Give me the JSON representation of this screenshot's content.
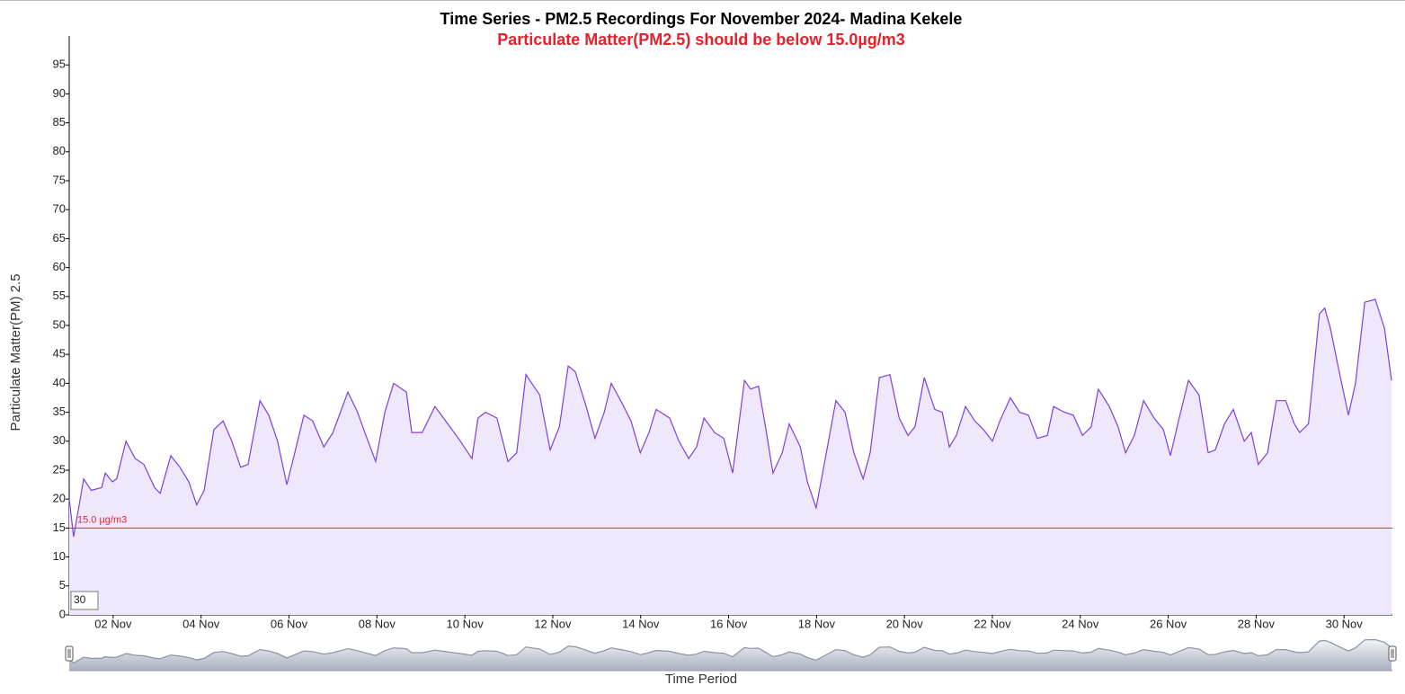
{
  "chart_data": {
    "type": "line",
    "title": "Time Series - PM2.5 Recordings For November 2024- Madina Kekele",
    "subtitle": "Particulate Matter(PM2.5) should be below 15.0µg/m3",
    "y_label": "Particulate Matter(PM) 2.5",
    "x_label": "Time Period",
    "roll_period": 30,
    "color": "#7b3fe4",
    "fill": "#efe8fd",
    "threshold": {
      "value": 15,
      "label": "15.0 µg/m3",
      "color": "#e8202a"
    },
    "xlim": [
      1,
      31.1
    ],
    "ylim": [
      0,
      100
    ],
    "xticks": [
      {
        "value": 2,
        "label": "02 Nov"
      },
      {
        "value": 4,
        "label": "04 Nov"
      },
      {
        "value": 6,
        "label": "06 Nov"
      },
      {
        "value": 8,
        "label": "08 Nov"
      },
      {
        "value": 10,
        "label": "10 Nov"
      },
      {
        "value": 12,
        "label": "12 Nov"
      },
      {
        "value": 14,
        "label": "14 Nov"
      },
      {
        "value": 16,
        "label": "16 Nov"
      },
      {
        "value": 18,
        "label": "18 Nov"
      },
      {
        "value": 20,
        "label": "20 Nov"
      },
      {
        "value": 22,
        "label": "22 Nov"
      },
      {
        "value": 24,
        "label": "24 Nov"
      },
      {
        "value": 26,
        "label": "26 Nov"
      },
      {
        "value": 28,
        "label": "28 Nov"
      },
      {
        "value": 30,
        "label": "30 Nov"
      }
    ],
    "yticks": [
      0,
      5,
      10,
      15,
      20,
      25,
      30,
      35,
      40,
      45,
      50,
      55,
      60,
      65,
      70,
      75,
      80,
      85,
      90,
      95
    ],
    "x": [
      1.0,
      1.1,
      1.25,
      1.33,
      1.5,
      1.74,
      1.82,
      1.98,
      2.08,
      2.29,
      2.5,
      2.7,
      2.94,
      3.07,
      3.31,
      3.52,
      3.72,
      3.9,
      4.07,
      4.29,
      4.5,
      4.7,
      4.9,
      5.07,
      5.34,
      5.54,
      5.74,
      5.95,
      6.13,
      6.34,
      6.54,
      6.79,
      7.0,
      7.34,
      7.56,
      7.75,
      7.97,
      8.18,
      8.38,
      8.67,
      8.79,
      9.03,
      9.32,
      9.61,
      9.9,
      10.16,
      10.3,
      10.47,
      10.73,
      10.98,
      11.18,
      11.39,
      11.7,
      11.94,
      12.15,
      12.35,
      12.51,
      12.76,
      12.96,
      13.17,
      13.33,
      13.58,
      13.78,
      13.99,
      14.19,
      14.35,
      14.66,
      14.87,
      15.09,
      15.27,
      15.44,
      15.68,
      15.89,
      16.09,
      16.36,
      16.5,
      16.68,
      16.85,
      17.01,
      17.22,
      17.38,
      17.63,
      17.79,
      17.99,
      18.2,
      18.44,
      18.65,
      18.85,
      19.06,
      19.22,
      19.43,
      19.67,
      19.88,
      20.08,
      20.24,
      20.45,
      20.69,
      20.86,
      21.02,
      21.18,
      21.39,
      21.6,
      21.8,
      22.0,
      22.17,
      22.41,
      22.62,
      22.82,
      23.02,
      23.25,
      23.39,
      23.64,
      23.84,
      24.05,
      24.25,
      24.41,
      24.66,
      24.86,
      25.03,
      25.23,
      25.44,
      25.68,
      25.89,
      26.05,
      26.25,
      26.46,
      26.7,
      26.91,
      27.07,
      27.28,
      27.48,
      27.73,
      27.89,
      28.05,
      28.26,
      28.46,
      28.67,
      28.87,
      28.99,
      29.19,
      29.44,
      29.56,
      29.69,
      29.89,
      30.1,
      30.26,
      30.47,
      30.71,
      30.92,
      31.08
    ],
    "values": [
      20,
      13.5,
      20,
      23.5,
      21.5,
      22,
      24.5,
      23,
      23.5,
      30,
      27,
      26,
      22,
      21,
      27.5,
      25.5,
      23,
      19,
      21.5,
      32,
      33.5,
      30,
      25.5,
      26,
      37,
      34.5,
      30,
      22.5,
      28,
      34.5,
      33.5,
      29,
      31.5,
      38.5,
      35,
      31,
      26.5,
      35,
      40,
      38.5,
      31.5,
      31.5,
      36,
      33,
      30,
      27,
      34,
      35,
      34,
      26.5,
      28,
      41.5,
      38,
      28.5,
      32.5,
      43,
      42,
      36,
      30.5,
      35,
      40,
      36.5,
      33.5,
      28,
      31.5,
      35.5,
      34,
      30,
      27,
      29,
      34,
      31.5,
      30.5,
      24.5,
      40.5,
      39,
      39.5,
      32,
      24.5,
      28,
      33,
      29,
      23,
      18.5,
      27,
      37,
      35,
      28,
      23.5,
      28,
      41,
      41.5,
      34,
      31,
      32.5,
      41,
      35.5,
      35,
      29,
      31,
      36,
      33.5,
      32,
      30,
      33.5,
      37.5,
      35,
      34.5,
      30.5,
      31,
      36,
      35,
      34.5,
      31,
      32.5,
      39,
      36,
      32.5,
      28,
      31,
      37,
      34,
      32,
      27.5,
      34,
      40.5,
      38,
      28,
      28.5,
      33,
      35.5,
      30,
      31.5,
      26,
      28,
      37,
      37,
      33,
      31.5,
      33,
      52,
      53,
      49.5,
      42,
      34.5,
      40,
      54,
      54.5,
      49.5,
      40.5
    ]
  }
}
